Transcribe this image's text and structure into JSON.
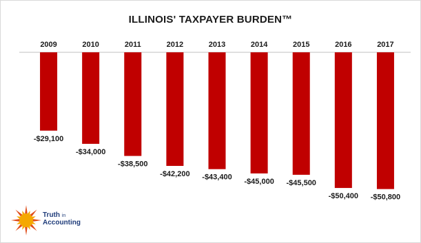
{
  "chart_data": {
    "type": "bar",
    "title": "ILLINOIS' TAXPAYER BURDEN™",
    "xlabel": "",
    "ylabel": "",
    "categories": [
      "2009",
      "2010",
      "2011",
      "2012",
      "2013",
      "2014",
      "2015",
      "2016",
      "2017"
    ],
    "values": [
      -29100,
      -34000,
      -38500,
      -42200,
      -43400,
      -45000,
      -45500,
      -50400,
      -50800
    ],
    "value_labels": [
      "-$29,100",
      "-$34,000",
      "-$38,500",
      "-$42,200",
      "-$43,400",
      "-$45,000",
      "-$45,500",
      "-$50,400",
      "-$50,800"
    ],
    "ylim": [
      -60000,
      0
    ],
    "grid": false,
    "legend": "none",
    "bar_color": "#c00000",
    "axis_position": "top"
  },
  "logo": {
    "line1": "Truth",
    "line1_small": "in",
    "line2": "Accounting",
    "sun_color": "#f5a800",
    "text_color": "#1f3c7a"
  }
}
